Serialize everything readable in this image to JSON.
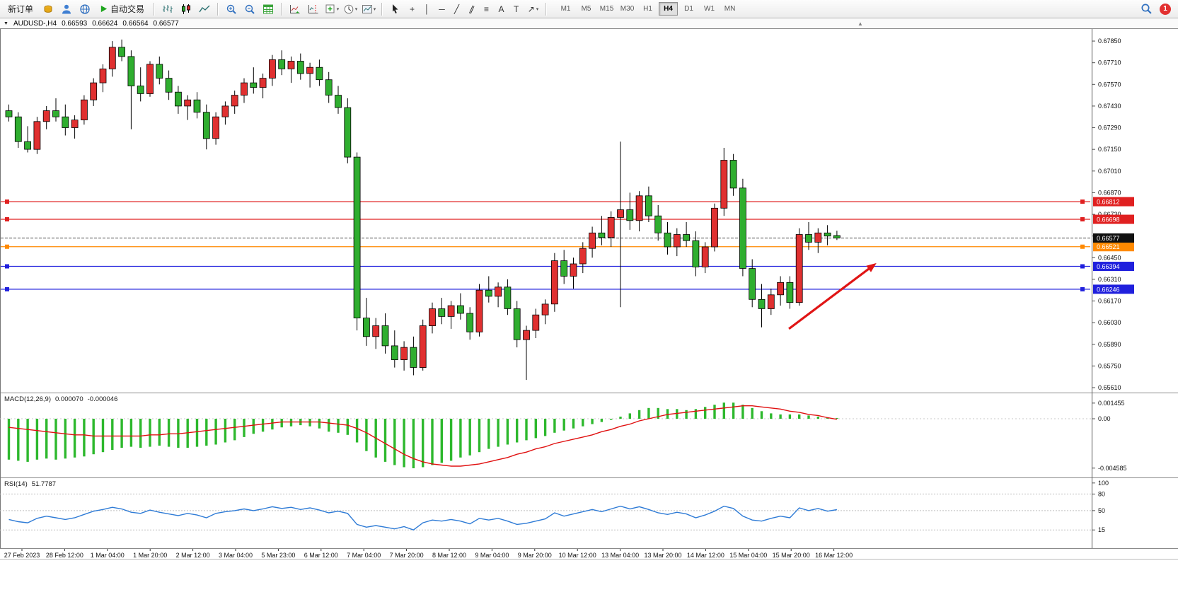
{
  "toolbar": {
    "new_order": "新订单",
    "auto_trading": "自动交易",
    "timeframes": [
      "M1",
      "M5",
      "M15",
      "M30",
      "H1",
      "H4",
      "D1",
      "W1",
      "MN"
    ],
    "active_timeframe": "H4",
    "notification_badge": "1",
    "glyphs": {
      "dropdown": "▾",
      "caption_menu": "▼",
      "shift_marker": "▲",
      "crosshair": "+",
      "vertical_line": "│",
      "horizontal_line": "─",
      "trendline": "╱",
      "channel": "∥",
      "fibonacci": "≡",
      "text_tool": "A",
      "label_tool": "T",
      "arrows_tool": "↗"
    }
  },
  "chart_window": {
    "symbol": "AUDUSD-,H4",
    "open": "0.66593",
    "high": "0.66624",
    "low": "0.66564",
    "close": "0.66577"
  },
  "indicators": {
    "macd": {
      "name": "MACD(12,26,9)",
      "main_value": "0.000070",
      "signal_value": "-0.000046"
    },
    "rsi": {
      "name": "RSI(14)",
      "value": "51.7787"
    }
  },
  "chart_data": [
    {
      "type": "candlestick",
      "title": "AUDUSD- H4",
      "grid": false,
      "legend_position": "none",
      "ylim": [
        0.65578,
        0.67928
      ],
      "up_color": "#e03030",
      "down_color": "#2fae2f",
      "price_axis_labels": [
        0.6785,
        0.6771,
        0.6757,
        0.6743,
        0.6729,
        0.6715,
        0.6701,
        0.6687,
        0.6673,
        0.6659,
        0.6645,
        0.6631,
        0.6617,
        0.6603,
        0.6589,
        0.6575,
        0.6561
      ],
      "candles": [
        [
          0.674,
          0.6744,
          0.6733,
          0.6736
        ],
        [
          0.6736,
          0.6739,
          0.6716,
          0.672
        ],
        [
          0.672,
          0.673,
          0.6713,
          0.6715
        ],
        [
          0.6715,
          0.6736,
          0.6712,
          0.6733
        ],
        [
          0.6733,
          0.6743,
          0.6728,
          0.674
        ],
        [
          0.674,
          0.6748,
          0.6733,
          0.6736
        ],
        [
          0.6736,
          0.6744,
          0.6724,
          0.6729
        ],
        [
          0.6729,
          0.6737,
          0.6722,
          0.6734
        ],
        [
          0.6734,
          0.675,
          0.6731,
          0.6747
        ],
        [
          0.6747,
          0.6761,
          0.6743,
          0.6758
        ],
        [
          0.6758,
          0.677,
          0.6752,
          0.6767
        ],
        [
          0.6767,
          0.6785,
          0.6762,
          0.6781
        ],
        [
          0.6781,
          0.6786,
          0.6772,
          0.6775
        ],
        [
          0.6775,
          0.6779,
          0.6728,
          0.6756
        ],
        [
          0.6756,
          0.6768,
          0.6746,
          0.6751
        ],
        [
          0.6751,
          0.6772,
          0.6749,
          0.677
        ],
        [
          0.677,
          0.6775,
          0.6757,
          0.6761
        ],
        [
          0.6761,
          0.6766,
          0.6747,
          0.6752
        ],
        [
          0.6752,
          0.6756,
          0.6738,
          0.6743
        ],
        [
          0.6743,
          0.675,
          0.6734,
          0.6747
        ],
        [
          0.6747,
          0.6752,
          0.6735,
          0.6739
        ],
        [
          0.6739,
          0.6744,
          0.6715,
          0.6722
        ],
        [
          0.6722,
          0.6739,
          0.6718,
          0.6736
        ],
        [
          0.6736,
          0.6746,
          0.6731,
          0.6743
        ],
        [
          0.6743,
          0.6753,
          0.6738,
          0.675
        ],
        [
          0.675,
          0.6761,
          0.6745,
          0.6758
        ],
        [
          0.6758,
          0.6768,
          0.6751,
          0.6755
        ],
        [
          0.6755,
          0.6764,
          0.6748,
          0.6761
        ],
        [
          0.6761,
          0.6776,
          0.6756,
          0.6773
        ],
        [
          0.6773,
          0.6779,
          0.6763,
          0.6767
        ],
        [
          0.6767,
          0.6775,
          0.6758,
          0.6772
        ],
        [
          0.6772,
          0.6777,
          0.676,
          0.6764
        ],
        [
          0.6764,
          0.6771,
          0.6755,
          0.6768
        ],
        [
          0.6768,
          0.6773,
          0.6756,
          0.676
        ],
        [
          0.676,
          0.6765,
          0.6745,
          0.675
        ],
        [
          0.675,
          0.6756,
          0.6738,
          0.6742
        ],
        [
          0.6742,
          0.6748,
          0.6706,
          0.671
        ],
        [
          0.671,
          0.6713,
          0.6598,
          0.6606
        ],
        [
          0.6606,
          0.6619,
          0.6588,
          0.6594
        ],
        [
          0.6594,
          0.6606,
          0.6586,
          0.6601
        ],
        [
          0.6601,
          0.6609,
          0.6583,
          0.6588
        ],
        [
          0.6588,
          0.6598,
          0.6574,
          0.6579
        ],
        [
          0.6579,
          0.6591,
          0.6572,
          0.6587
        ],
        [
          0.6587,
          0.6594,
          0.6569,
          0.6574
        ],
        [
          0.6574,
          0.6605,
          0.6572,
          0.6601
        ],
        [
          0.6601,
          0.6616,
          0.6596,
          0.6612
        ],
        [
          0.6612,
          0.6619,
          0.6602,
          0.6607
        ],
        [
          0.6607,
          0.6617,
          0.6599,
          0.6614
        ],
        [
          0.6614,
          0.6622,
          0.6605,
          0.6609
        ],
        [
          0.6609,
          0.6613,
          0.6592,
          0.6597
        ],
        [
          0.6597,
          0.6628,
          0.6594,
          0.6624
        ],
        [
          0.6624,
          0.6633,
          0.6616,
          0.662
        ],
        [
          0.662,
          0.6629,
          0.6613,
          0.6626
        ],
        [
          0.6626,
          0.6631,
          0.6608,
          0.6612
        ],
        [
          0.6612,
          0.6617,
          0.6587,
          0.6592
        ],
        [
          0.6592,
          0.6601,
          0.6566,
          0.6598
        ],
        [
          0.6598,
          0.6612,
          0.6593,
          0.6608
        ],
        [
          0.6608,
          0.6618,
          0.6602,
          0.6615
        ],
        [
          0.6615,
          0.6648,
          0.661,
          0.6643
        ],
        [
          0.6643,
          0.665,
          0.6628,
          0.6633
        ],
        [
          0.6633,
          0.6645,
          0.6625,
          0.6641
        ],
        [
          0.6641,
          0.6655,
          0.6635,
          0.6651
        ],
        [
          0.6651,
          0.6665,
          0.6645,
          0.6661
        ],
        [
          0.6661,
          0.6672,
          0.6653,
          0.6658
        ],
        [
          0.6658,
          0.6675,
          0.6652,
          0.6671
        ],
        [
          0.6671,
          0.672,
          0.6613,
          0.6676
        ],
        [
          0.6676,
          0.6687,
          0.6663,
          0.6669
        ],
        [
          0.6669,
          0.6688,
          0.6662,
          0.6685
        ],
        [
          0.6685,
          0.6691,
          0.6668,
          0.6672
        ],
        [
          0.6672,
          0.6679,
          0.6656,
          0.6661
        ],
        [
          0.6661,
          0.6668,
          0.6647,
          0.6652
        ],
        [
          0.6652,
          0.6664,
          0.6646,
          0.666
        ],
        [
          0.666,
          0.6668,
          0.6652,
          0.6656
        ],
        [
          0.6656,
          0.6662,
          0.6633,
          0.6639
        ],
        [
          0.6639,
          0.6655,
          0.6635,
          0.6652
        ],
        [
          0.6652,
          0.668,
          0.6649,
          0.6677
        ],
        [
          0.6677,
          0.6716,
          0.6672,
          0.6708
        ],
        [
          0.6708,
          0.6712,
          0.6685,
          0.669
        ],
        [
          0.669,
          0.6696,
          0.6633,
          0.6638
        ],
        [
          0.6638,
          0.6644,
          0.6613,
          0.6618
        ],
        [
          0.6618,
          0.6628,
          0.66,
          0.6612
        ],
        [
          0.6612,
          0.6625,
          0.6608,
          0.6621
        ],
        [
          0.6621,
          0.6633,
          0.6614,
          0.6629
        ],
        [
          0.6629,
          0.6633,
          0.6612,
          0.6616
        ],
        [
          0.6616,
          0.6664,
          0.6614,
          0.666
        ],
        [
          0.666,
          0.6668,
          0.665,
          0.6655
        ],
        [
          0.6655,
          0.6664,
          0.6648,
          0.6661
        ],
        [
          0.6661,
          0.6666,
          0.6653,
          0.6659
        ],
        [
          0.66593,
          0.66624,
          0.66564,
          0.66577
        ]
      ],
      "hlines": [
        {
          "price": 0.66812,
          "label": "0.66812",
          "color": "#e02020"
        },
        {
          "price": 0.66698,
          "label": "0.66698",
          "color": "#e02020"
        },
        {
          "price": 0.66521,
          "label": "0.66521",
          "color": "#ff8a00"
        },
        {
          "price": 0.66394,
          "label": "0.66394",
          "color": "#2020dd"
        },
        {
          "price": 0.66246,
          "label": "0.66246",
          "color": "#2020dd"
        }
      ],
      "bid_line": {
        "price": 0.66577,
        "label": "0.66577",
        "box_color": "#111111"
      },
      "arrow": {
        "from": {
          "index": 82.9,
          "price": 0.6599
        },
        "to": {
          "index": 92.2,
          "price": 0.66415
        },
        "color": "#e01515"
      },
      "shift_marker_index": 90.6,
      "time_labels": [
        "27 Feb 2023",
        "28 Feb 12:00",
        "1 Mar 04:00",
        "1 Mar 20:00",
        "2 Mar 12:00",
        "3 Mar 04:00",
        "5 Mar 23:00",
        "6 Mar 12:00",
        "7 Mar 04:00",
        "7 Mar 20:00",
        "8 Mar 12:00",
        "9 Mar 04:00",
        "9 Mar 20:00",
        "10 Mar 12:00",
        "13 Mar 04:00",
        "13 Mar 20:00",
        "14 Mar 12:00",
        "15 Mar 04:00",
        "15 Mar 20:00",
        "16 Mar 12:00"
      ]
    },
    {
      "type": "bar",
      "name": "MACD(12,26,9)",
      "current_main": 7e-05,
      "current_signal": -4.6e-05,
      "ylim": [
        -0.005453,
        0.002431
      ],
      "value_scale": 0.0001,
      "bar_color": "#2db82d",
      "signal_color": "#e01010",
      "values": [
        -38,
        -39,
        -40,
        -38,
        -37,
        -38,
        -37,
        -36,
        -35,
        -33,
        -31,
        -29,
        -27,
        -26,
        -27,
        -26,
        -25,
        -26,
        -27,
        -27,
        -26,
        -25,
        -24,
        -22,
        -20,
        -17,
        -14,
        -12,
        -10,
        -8,
        -7,
        -6,
        -7,
        -9,
        -12,
        -13,
        -15,
        -22,
        -30,
        -36,
        -40,
        -43,
        -45,
        -46,
        -45,
        -43,
        -41,
        -39,
        -36,
        -34,
        -31,
        -28,
        -26,
        -24,
        -22,
        -20,
        -18,
        -16,
        -13,
        -11,
        -9,
        -7,
        -5,
        -3,
        -1,
        2,
        5,
        8,
        10,
        10,
        9,
        9,
        8,
        9,
        11,
        13,
        15,
        15,
        13,
        10,
        7,
        5,
        4,
        4,
        4,
        3,
        2,
        1,
        0.7
      ],
      "signal": [
        -8,
        -9,
        -10,
        -11,
        -12,
        -13,
        -14,
        -15,
        -15,
        -16,
        -16,
        -16,
        -16,
        -16,
        -16,
        -15,
        -15,
        -14,
        -14,
        -13,
        -12,
        -11,
        -10,
        -9,
        -8,
        -7,
        -6,
        -5,
        -4,
        -3,
        -3,
        -3,
        -3,
        -3,
        -4,
        -5,
        -6,
        -9,
        -13,
        -18,
        -23,
        -28,
        -33,
        -37,
        -40,
        -42,
        -43,
        -44,
        -44,
        -43,
        -42,
        -40,
        -38,
        -36,
        -33,
        -31,
        -28,
        -26,
        -23,
        -21,
        -19,
        -17,
        -15,
        -12,
        -10,
        -7,
        -5,
        -2,
        0,
        2,
        4,
        5,
        6,
        7,
        8,
        9,
        10,
        11,
        12,
        12,
        11,
        10,
        9,
        7,
        6,
        4,
        3,
        1,
        -0.5
      ],
      "axis_values": [
        0.001455,
        0,
        -0.004585
      ],
      "axis_labels": [
        "0.001455",
        "0.00",
        "-0.004585"
      ]
    },
    {
      "type": "line",
      "name": "RSI(14)",
      "current": 51.7787,
      "ylim": [
        -18,
        110
      ],
      "line_color": "#2e7bd6",
      "levels": [
        80,
        50,
        15
      ],
      "axis_values": [
        100,
        80,
        50,
        15
      ],
      "axis_labels": [
        "100",
        "80",
        "50",
        "15"
      ],
      "values": [
        34,
        30,
        28,
        36,
        40,
        37,
        34,
        37,
        43,
        49,
        52,
        56,
        53,
        47,
        45,
        51,
        47,
        44,
        41,
        45,
        42,
        37,
        45,
        48,
        50,
        53,
        50,
        53,
        57,
        54,
        56,
        52,
        55,
        51,
        46,
        49,
        45,
        25,
        20,
        23,
        20,
        17,
        21,
        15,
        28,
        33,
        31,
        34,
        31,
        26,
        36,
        33,
        36,
        31,
        25,
        27,
        31,
        35,
        46,
        40,
        44,
        48,
        52,
        48,
        53,
        58,
        53,
        57,
        52,
        46,
        43,
        47,
        44,
        37,
        42,
        49,
        58,
        54,
        40,
        33,
        31,
        36,
        40,
        37,
        55,
        50,
        54,
        49,
        51.7787
      ]
    }
  ]
}
